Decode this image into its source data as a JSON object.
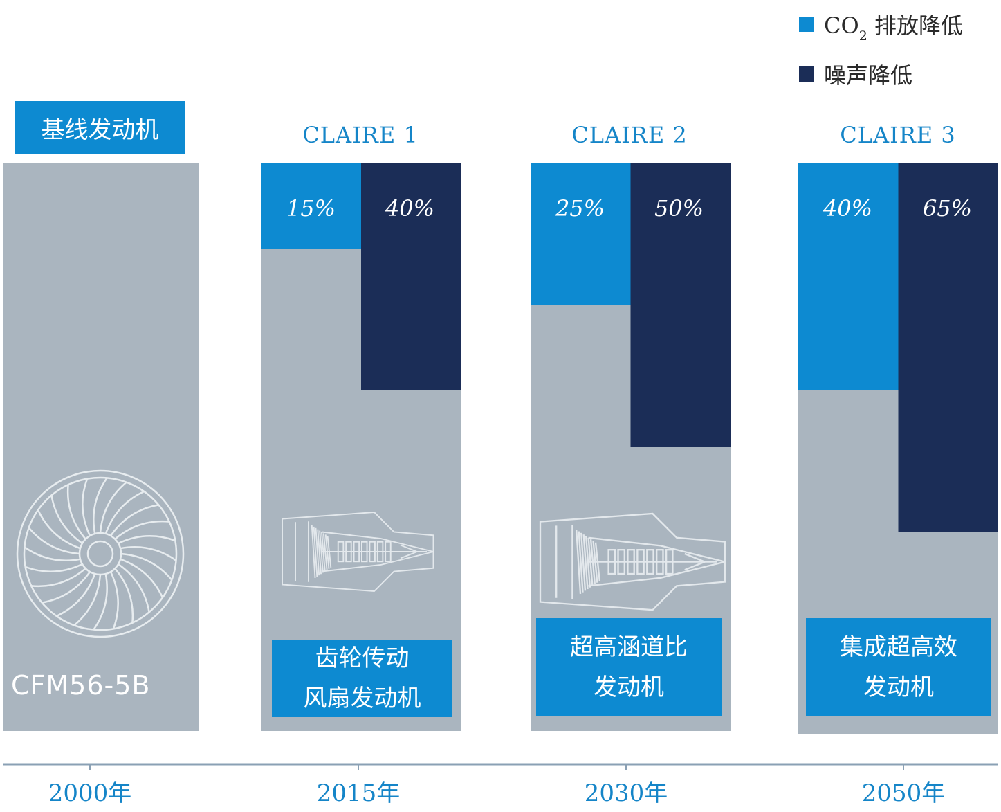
{
  "chart_data": {
    "type": "bar",
    "title": "",
    "legend": [
      {
        "key": "co2",
        "label_main": "CO",
        "label_sub": "2",
        "label_rest": " 排放降低",
        "color": "#0d8ad1"
      },
      {
        "key": "noise",
        "label": "噪声降低",
        "color": "#1b2d57"
      }
    ],
    "legend_position": "top-right",
    "categories": [
      "2000年",
      "2015年",
      "2030年",
      "2050年"
    ],
    "column_titles": [
      "基线发动机",
      "CLAIRE 1",
      "CLAIRE 2",
      "CLAIRE 3"
    ],
    "series": [
      {
        "name": "CO2 排放降低",
        "values": [
          0,
          15,
          25,
          40
        ],
        "labels": [
          "",
          "15%",
          "25%",
          "40%"
        ]
      },
      {
        "name": "噪声降低",
        "values": [
          0,
          40,
          50,
          65
        ],
        "labels": [
          "",
          "40%",
          "50%",
          "65%"
        ]
      }
    ],
    "ylim": [
      0,
      100
    ],
    "engines": [
      {
        "lines": [
          "CFM56-5B"
        ]
      },
      {
        "lines": [
          "齿轮传动",
          "风扇发动机"
        ]
      },
      {
        "lines": [
          "超高涵道比",
          "发动机"
        ]
      },
      {
        "lines": [
          "集成超高效",
          "发动机"
        ]
      }
    ],
    "colors": {
      "background_bar": "#aab5bf",
      "co2": "#0d8ad1",
      "noise": "#1b2d57",
      "accent_text": "#1585c8",
      "axis": "#8aa0b4"
    }
  }
}
